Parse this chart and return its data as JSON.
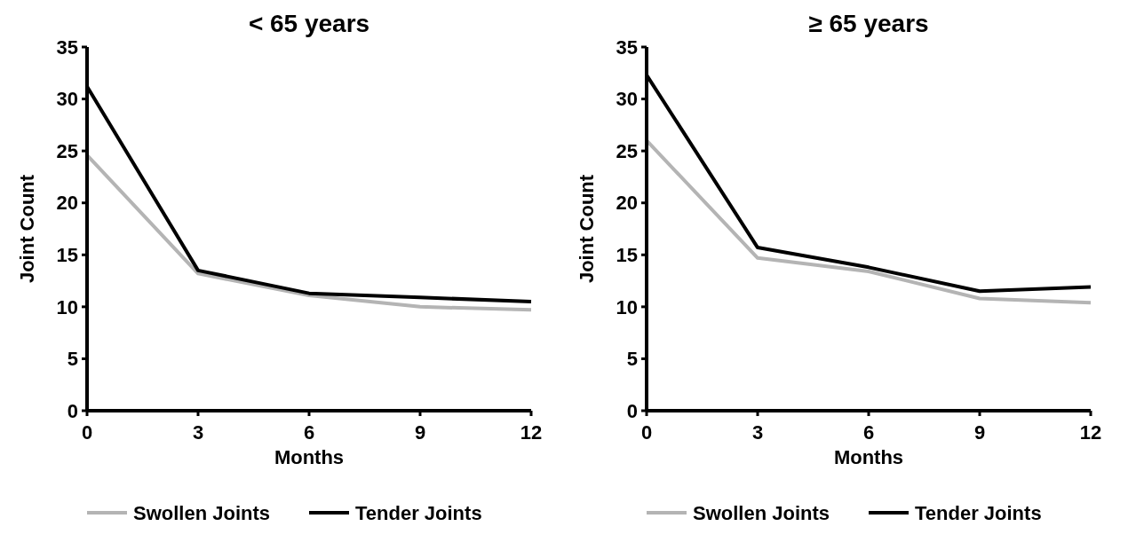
{
  "chart_data": [
    {
      "type": "line",
      "title": "< 65 years",
      "xlabel": "Months",
      "ylabel": "Joint Count",
      "x": [
        0,
        3,
        6,
        9,
        12
      ],
      "xlim": [
        0,
        12
      ],
      "xticks": [
        0,
        3,
        6,
        9,
        12
      ],
      "ylim": [
        0,
        35
      ],
      "yticks": [
        0,
        5,
        10,
        15,
        20,
        25,
        30,
        35
      ],
      "grid": false,
      "legend": "bottom",
      "marker": "none",
      "series": [
        {
          "name": "Swollen Joints",
          "color": "#b4b4b4",
          "values": [
            24.6,
            13.2,
            11.1,
            10.0,
            9.7
          ]
        },
        {
          "name": "Tender Joints",
          "color": "#000000",
          "values": [
            31.2,
            13.5,
            11.3,
            10.9,
            10.5
          ]
        }
      ]
    },
    {
      "type": "line",
      "title": "≥ 65 years",
      "xlabel": "Months",
      "ylabel": "Joint Count",
      "x": [
        0,
        3,
        6,
        9,
        12
      ],
      "xlim": [
        0,
        12
      ],
      "xticks": [
        0,
        3,
        6,
        9,
        12
      ],
      "ylim": [
        0,
        35
      ],
      "yticks": [
        0,
        5,
        10,
        15,
        20,
        25,
        30,
        35
      ],
      "grid": false,
      "legend": "bottom",
      "marker": "none",
      "series": [
        {
          "name": "Swollen Joints",
          "color": "#b4b4b4",
          "values": [
            26.0,
            14.7,
            13.4,
            10.8,
            10.4
          ]
        },
        {
          "name": "Tender Joints",
          "color": "#000000",
          "values": [
            32.3,
            15.7,
            13.8,
            11.5,
            11.9
          ]
        }
      ]
    }
  ]
}
